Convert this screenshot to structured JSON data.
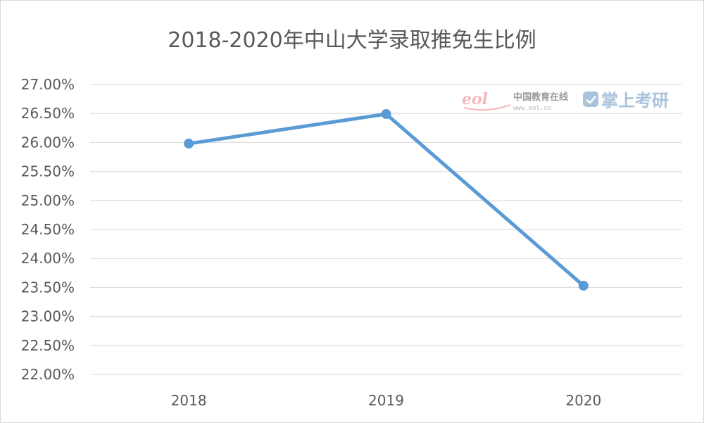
{
  "chart_data": {
    "type": "line",
    "title": "2018-2020年中山大学录取推免生比例",
    "categories": [
      "2018",
      "2019",
      "2020"
    ],
    "series": [
      {
        "values": [
          25.98,
          26.49,
          23.53
        ]
      }
    ],
    "ylim": [
      22.0,
      27.0
    ],
    "y_ticks": [
      "27.00%",
      "26.50%",
      "26.00%",
      "25.50%",
      "25.00%",
      "24.50%",
      "24.00%",
      "23.50%",
      "23.00%",
      "22.50%",
      "22.00%"
    ],
    "y_tick_values": [
      27.0,
      26.5,
      26.0,
      25.5,
      25.0,
      24.5,
      24.0,
      23.5,
      23.0,
      22.5,
      22.0
    ],
    "grid": true,
    "legend": "none",
    "line_color": "#5b9bd5"
  },
  "watermark": {
    "eol_text": "eol",
    "cn_text": "中国教育在线",
    "url_text": "www.eol.cn",
    "brand_text": "掌上考研",
    "brand_color": "#a9c3dc",
    "eol_color": "#f4b8b8"
  }
}
